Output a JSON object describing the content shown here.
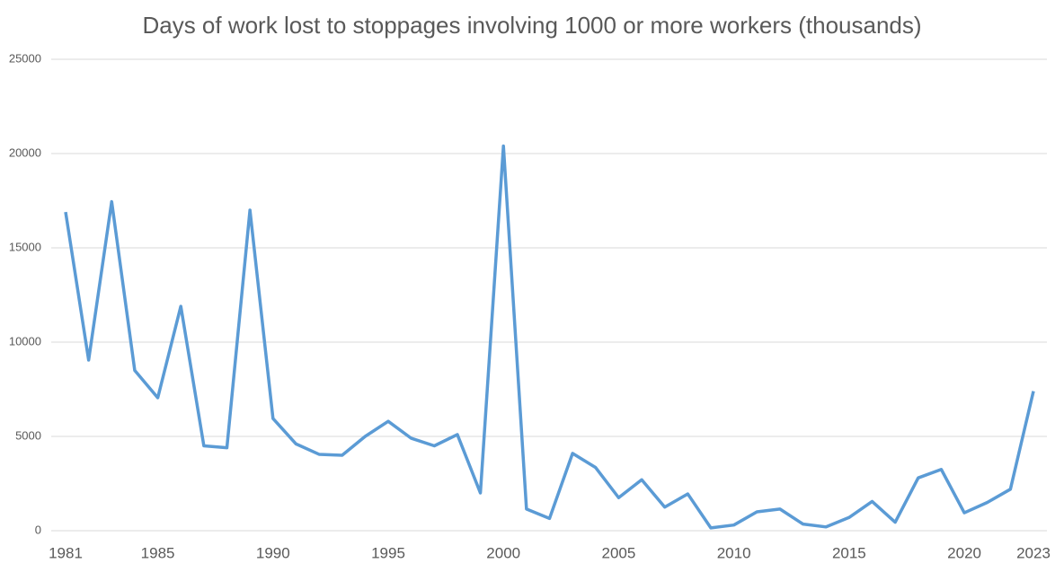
{
  "chart_data": {
    "type": "line",
    "title": "Days of work lost to stoppages involving 1000 or more workers (thousands)",
    "x": [
      1981,
      1982,
      1983,
      1984,
      1985,
      1986,
      1987,
      1988,
      1989,
      1990,
      1991,
      1992,
      1993,
      1994,
      1995,
      1996,
      1997,
      1998,
      1999,
      2000,
      2001,
      2002,
      2003,
      2004,
      2005,
      2006,
      2007,
      2008,
      2009,
      2010,
      2011,
      2012,
      2013,
      2014,
      2015,
      2016,
      2017,
      2018,
      2019,
      2020,
      2021,
      2022,
      2023
    ],
    "series": [
      {
        "color": "#5b9bd5",
        "values": [
          16900,
          9050,
          17450,
          8500,
          7050,
          11900,
          4500,
          4400,
          17000,
          5950,
          4600,
          4050,
          4000,
          5000,
          5800,
          4900,
          4500,
          5100,
          2000,
          20400,
          1150,
          650,
          4100,
          3350,
          1750,
          2700,
          1250,
          1950,
          150,
          300,
          1000,
          1150,
          350,
          200,
          700,
          1550,
          450,
          2800,
          3250,
          950,
          1500,
          2200,
          7400
        ]
      }
    ],
    "xlim": [
      1981,
      2023
    ],
    "xticks": [
      1981,
      1985,
      1990,
      1995,
      2000,
      2005,
      2010,
      2015,
      2020,
      2023
    ],
    "ylim": [
      0,
      25000
    ],
    "yticks": [
      0,
      5000,
      10000,
      15000,
      20000,
      25000
    ],
    "grid": true
  }
}
